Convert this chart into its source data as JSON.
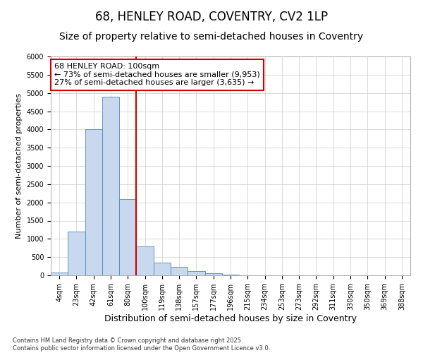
{
  "title_line1": "68, HENLEY ROAD, COVENTRY, CV2 1LP",
  "title_line2": "Size of property relative to semi-detached houses in Coventry",
  "xlabel": "Distribution of semi-detached houses by size in Coventry",
  "ylabel": "Number of semi-detached properties",
  "categories": [
    "4sqm",
    "23sqm",
    "42sqm",
    "61sqm",
    "80sqm",
    "100sqm",
    "119sqm",
    "138sqm",
    "157sqm",
    "177sqm",
    "196sqm",
    "215sqm",
    "234sqm",
    "253sqm",
    "273sqm",
    "292sqm",
    "311sqm",
    "330sqm",
    "350sqm",
    "369sqm",
    "388sqm"
  ],
  "values": [
    75,
    1200,
    4000,
    4900,
    2100,
    800,
    350,
    225,
    125,
    50,
    15,
    5,
    2,
    0,
    0,
    0,
    0,
    0,
    0,
    0,
    0
  ],
  "bar_color": "#c8d8ee",
  "bar_edge_color": "#5588bb",
  "grid_color": "#cccccc",
  "vline_color": "#cc0000",
  "annotation_text": "68 HENLEY ROAD: 100sqm\n← 73% of semi-detached houses are smaller (9,953)\n27% of semi-detached houses are larger (3,635) →",
  "annotation_box_color": "#ffffff",
  "annotation_box_edge": "#cc0000",
  "ylim": [
    0,
    6000
  ],
  "yticks": [
    0,
    500,
    1000,
    1500,
    2000,
    2500,
    3000,
    3500,
    4000,
    4500,
    5000,
    5500,
    6000
  ],
  "background_color": "#ffffff",
  "plot_background": "#ffffff",
  "footer": "Contains HM Land Registry data © Crown copyright and database right 2025.\nContains public sector information licensed under the Open Government Licence v3.0.",
  "title_fontsize": 12,
  "subtitle_fontsize": 10,
  "tick_fontsize": 7,
  "xlabel_fontsize": 9,
  "ylabel_fontsize": 8,
  "annotation_fontsize": 8,
  "footer_fontsize": 6
}
